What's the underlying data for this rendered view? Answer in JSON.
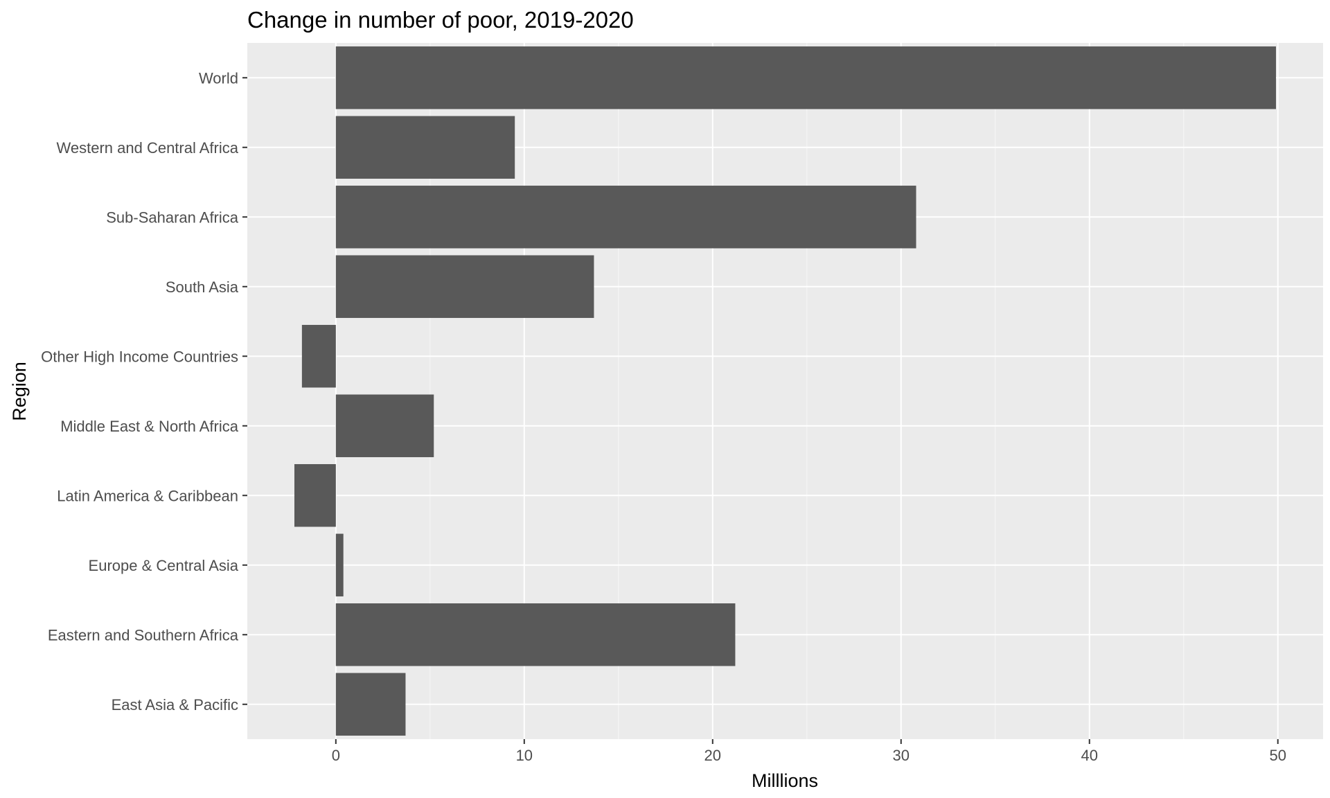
{
  "chart_data": {
    "type": "bar",
    "orientation": "horizontal",
    "title": "Change in number of poor, 2019-2020",
    "xlabel": "Milllions",
    "ylabel": "Region",
    "categories": [
      "World",
      "Western and Central Africa",
      "Sub-Saharan Africa",
      "South Asia",
      "Other High Income Countries",
      "Middle East & North Africa",
      "Latin America & Caribbean",
      "Europe & Central Asia",
      "Eastern and Southern Africa",
      "East Asia & Pacific"
    ],
    "values": [
      49.9,
      9.5,
      30.8,
      13.7,
      -1.8,
      5.2,
      -2.2,
      0.4,
      21.2,
      3.7
    ],
    "xlim": [
      -4.7,
      52.4
    ],
    "xticks": [
      0,
      10,
      20,
      30,
      40,
      50
    ],
    "grid": true,
    "legend": "none",
    "colors": {
      "bar": "#595959",
      "panel": "#ebebeb",
      "grid_major": "#ffffff",
      "grid_minor": "#f5f5f5",
      "tick_text": "#4d4d4d",
      "text": "#000000"
    }
  }
}
